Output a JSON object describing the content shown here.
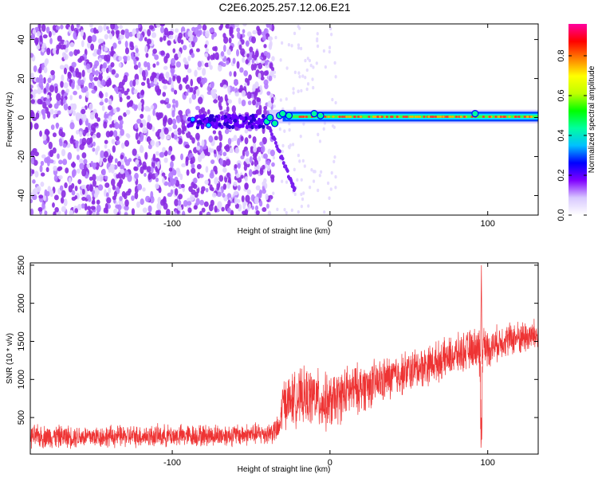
{
  "figure": {
    "title": "C2E6.2025.257.12.06.E21"
  },
  "chart_data": [
    {
      "type": "heatmap",
      "title": "",
      "xlabel": "Height of straight line (km)",
      "ylabel": "Frequency (Hz)",
      "xlim": [
        -190,
        132
      ],
      "ylim": [
        -50,
        48
      ],
      "x_ticks": [
        -100,
        0,
        100
      ],
      "y_ticks": [
        -40,
        -20,
        0,
        20,
        40
      ],
      "grid": false,
      "colorbar": {
        "label": "Normalized spectral amplitude",
        "range": [
          0,
          0.96
        ],
        "ticks": [
          0.0,
          0.2,
          0.4,
          0.6,
          0.8
        ],
        "colors": [
          "#ffffff",
          "#d8c8ff",
          "#8000ff",
          "#0000ff",
          "#00c0ff",
          "#00ffa0",
          "#00ff00",
          "#c0ff00",
          "#ffff00",
          "#ff8000",
          "#ff0000",
          "#ff00a0"
        ]
      },
      "regions": [
        {
          "x_range": [
            -190,
            -36
          ],
          "freq_range": [
            -50,
            48
          ],
          "amplitude": 0.1,
          "note": "broadband noise"
        },
        {
          "x_range": [
            -90,
            -40
          ],
          "freq_range": [
            -5,
            1
          ],
          "amplitude": 0.2
        },
        {
          "x_range": [
            -40,
            -22
          ],
          "freq_range": [
            -40,
            0
          ],
          "amplitude": 0.08,
          "note": "descending trace"
        },
        {
          "x_range": [
            -40,
            132
          ],
          "freq_range": [
            -1,
            2
          ],
          "amplitude": 0.85,
          "note": "near-zero frequency band"
        }
      ],
      "trace": {
        "name": "",
        "x": [
          -40,
          -35,
          -30,
          -25,
          -22
        ],
        "y": [
          -3,
          -12,
          -22,
          -32,
          -38
        ]
      }
    },
    {
      "type": "line",
      "title": "",
      "xlabel": "Height of straight line (km)",
      "ylabel": "SNR (10 * v/v)",
      "xlim": [
        -190,
        132
      ],
      "ylim": [
        20,
        2530
      ],
      "x_ticks": [
        -100,
        0,
        100
      ],
      "y_ticks": [
        500,
        1000,
        1500,
        2000,
        2500
      ],
      "grid": false,
      "color": "#ee3333",
      "series": [
        {
          "name": "",
          "x": [
            -190,
            -150,
            -100,
            -60,
            -40,
            -32,
            -30,
            -20,
            -10,
            -5,
            0,
            10,
            30,
            50,
            70,
            90,
            94,
            95,
            96,
            97,
            100,
            110,
            120,
            132
          ],
          "y": [
            250,
            250,
            260,
            270,
            290,
            350,
            700,
            760,
            780,
            700,
            690,
            830,
            960,
            1110,
            1250,
            1400,
            1450,
            1200,
            350,
            1500,
            1400,
            1520,
            1550,
            1580
          ],
          "noise_amplitude": [
            180,
            170,
            170,
            170,
            170,
            200,
            380,
            420,
            450,
            450,
            420,
            400,
            350,
            320,
            300,
            300,
            300,
            600,
            700,
            300,
            280,
            260,
            260,
            260
          ]
        }
      ],
      "annotations": [
        {
          "x": 96,
          "y": 2500,
          "note": "spike"
        }
      ]
    }
  ]
}
